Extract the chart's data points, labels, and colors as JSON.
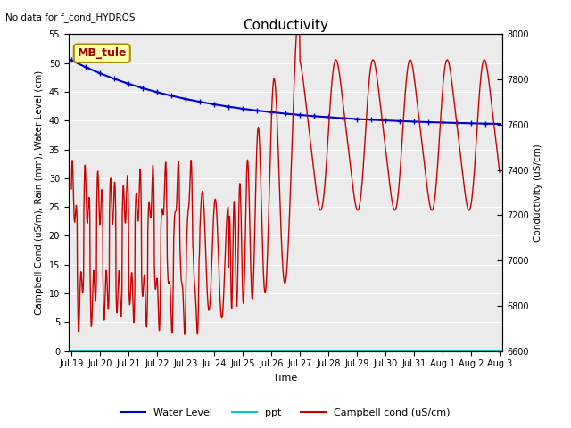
{
  "title": "Conductivity",
  "xlabel": "Time",
  "ylabel_left": "Campbell Cond (uS/m), Rain (mm), Water Level (cm)",
  "ylabel_right": "Conductivity (uS/cm)",
  "no_data_text": "No data for f_cond_HYDROS",
  "annotation_text": "MB_tule",
  "ylim_left": [
    0,
    55
  ],
  "ylim_right": [
    6600,
    8000
  ],
  "bg_color": "#ebebeb",
  "fig_bg_color": "#ffffff",
  "xtick_labels": [
    "Jul 19",
    "Jul 20",
    "Jul 21",
    "Jul 22",
    "Jul 23",
    "Jul 24",
    "Jul 25",
    "Jul 26",
    "Jul 27",
    "Jul 28",
    "Jul 29",
    "Jul 30",
    "Jul 31",
    "Aug 1",
    "Aug 2",
    "Aug 3"
  ],
  "legend_entries": [
    "Water Level",
    "ppt",
    "Campbell cond (uS/cm)"
  ],
  "legend_colors": [
    "#0000cc",
    "#00cccc",
    "#cc0000"
  ],
  "yticks_left": [
    0,
    5,
    10,
    15,
    20,
    25,
    30,
    35,
    40,
    45,
    50,
    55
  ],
  "yticks_right": [
    6600,
    6800,
    7000,
    7200,
    7400,
    7600,
    7800,
    8000
  ]
}
